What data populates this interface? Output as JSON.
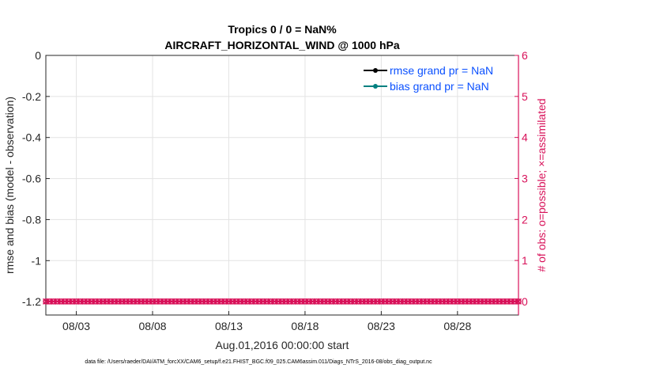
{
  "chart_data": {
    "type": "line",
    "title": [
      "Tropics 0 / 0 = NaN%",
      "AIRCRAFT_HORIZONTAL_WIND @ 1000 hPa"
    ],
    "xlabel": "Aug.01,2016 00:00:00 start",
    "ylabel_left": "rmse and bias (model - observation)",
    "ylabel_right": "# of obs: o=possible; ×=assimilated",
    "x_ticks": [
      "08/03",
      "08/08",
      "08/13",
      "08/18",
      "08/23",
      "08/28"
    ],
    "x_tick_days": [
      3,
      8,
      13,
      18,
      23,
      28
    ],
    "xlim_days": [
      1,
      32
    ],
    "ylim_left": [
      -1.265,
      0
    ],
    "y_ticks_left": [
      0,
      -0.2,
      -0.4,
      -0.6,
      -0.8,
      -1,
      -1.2
    ],
    "y_tick_labels_left": [
      "0",
      "-0.2",
      "-0.4",
      "-0.6",
      "-0.8",
      "-1",
      "-1.2"
    ],
    "ylim_right": [
      -0.33,
      6
    ],
    "y_ticks_right": [
      0,
      1,
      2,
      3,
      4,
      5,
      6
    ],
    "grid": true,
    "legend_position": "top-right",
    "series": [
      {
        "name": "rmse grand pr = NaN",
        "color": "#000000",
        "values": []
      },
      {
        "name": "bias grand pr = NaN",
        "color": "#008080",
        "values": []
      },
      {
        "axis": "right",
        "marker": "o and x",
        "color": "#d81159",
        "interval_hours": 6,
        "value": 0,
        "note_count_points": 124
      }
    ],
    "colors": {
      "right_axis": "#d81159",
      "legend_text": "#0a50ff"
    }
  },
  "footer": "data file: /Users/raeder/DAI/ATM_forcXX/CAM6_setup/f.e21.FHIST_BGC.f09_025.CAM6assim.011/Diags_NTrS_2016-08/obs_diag_output.nc"
}
